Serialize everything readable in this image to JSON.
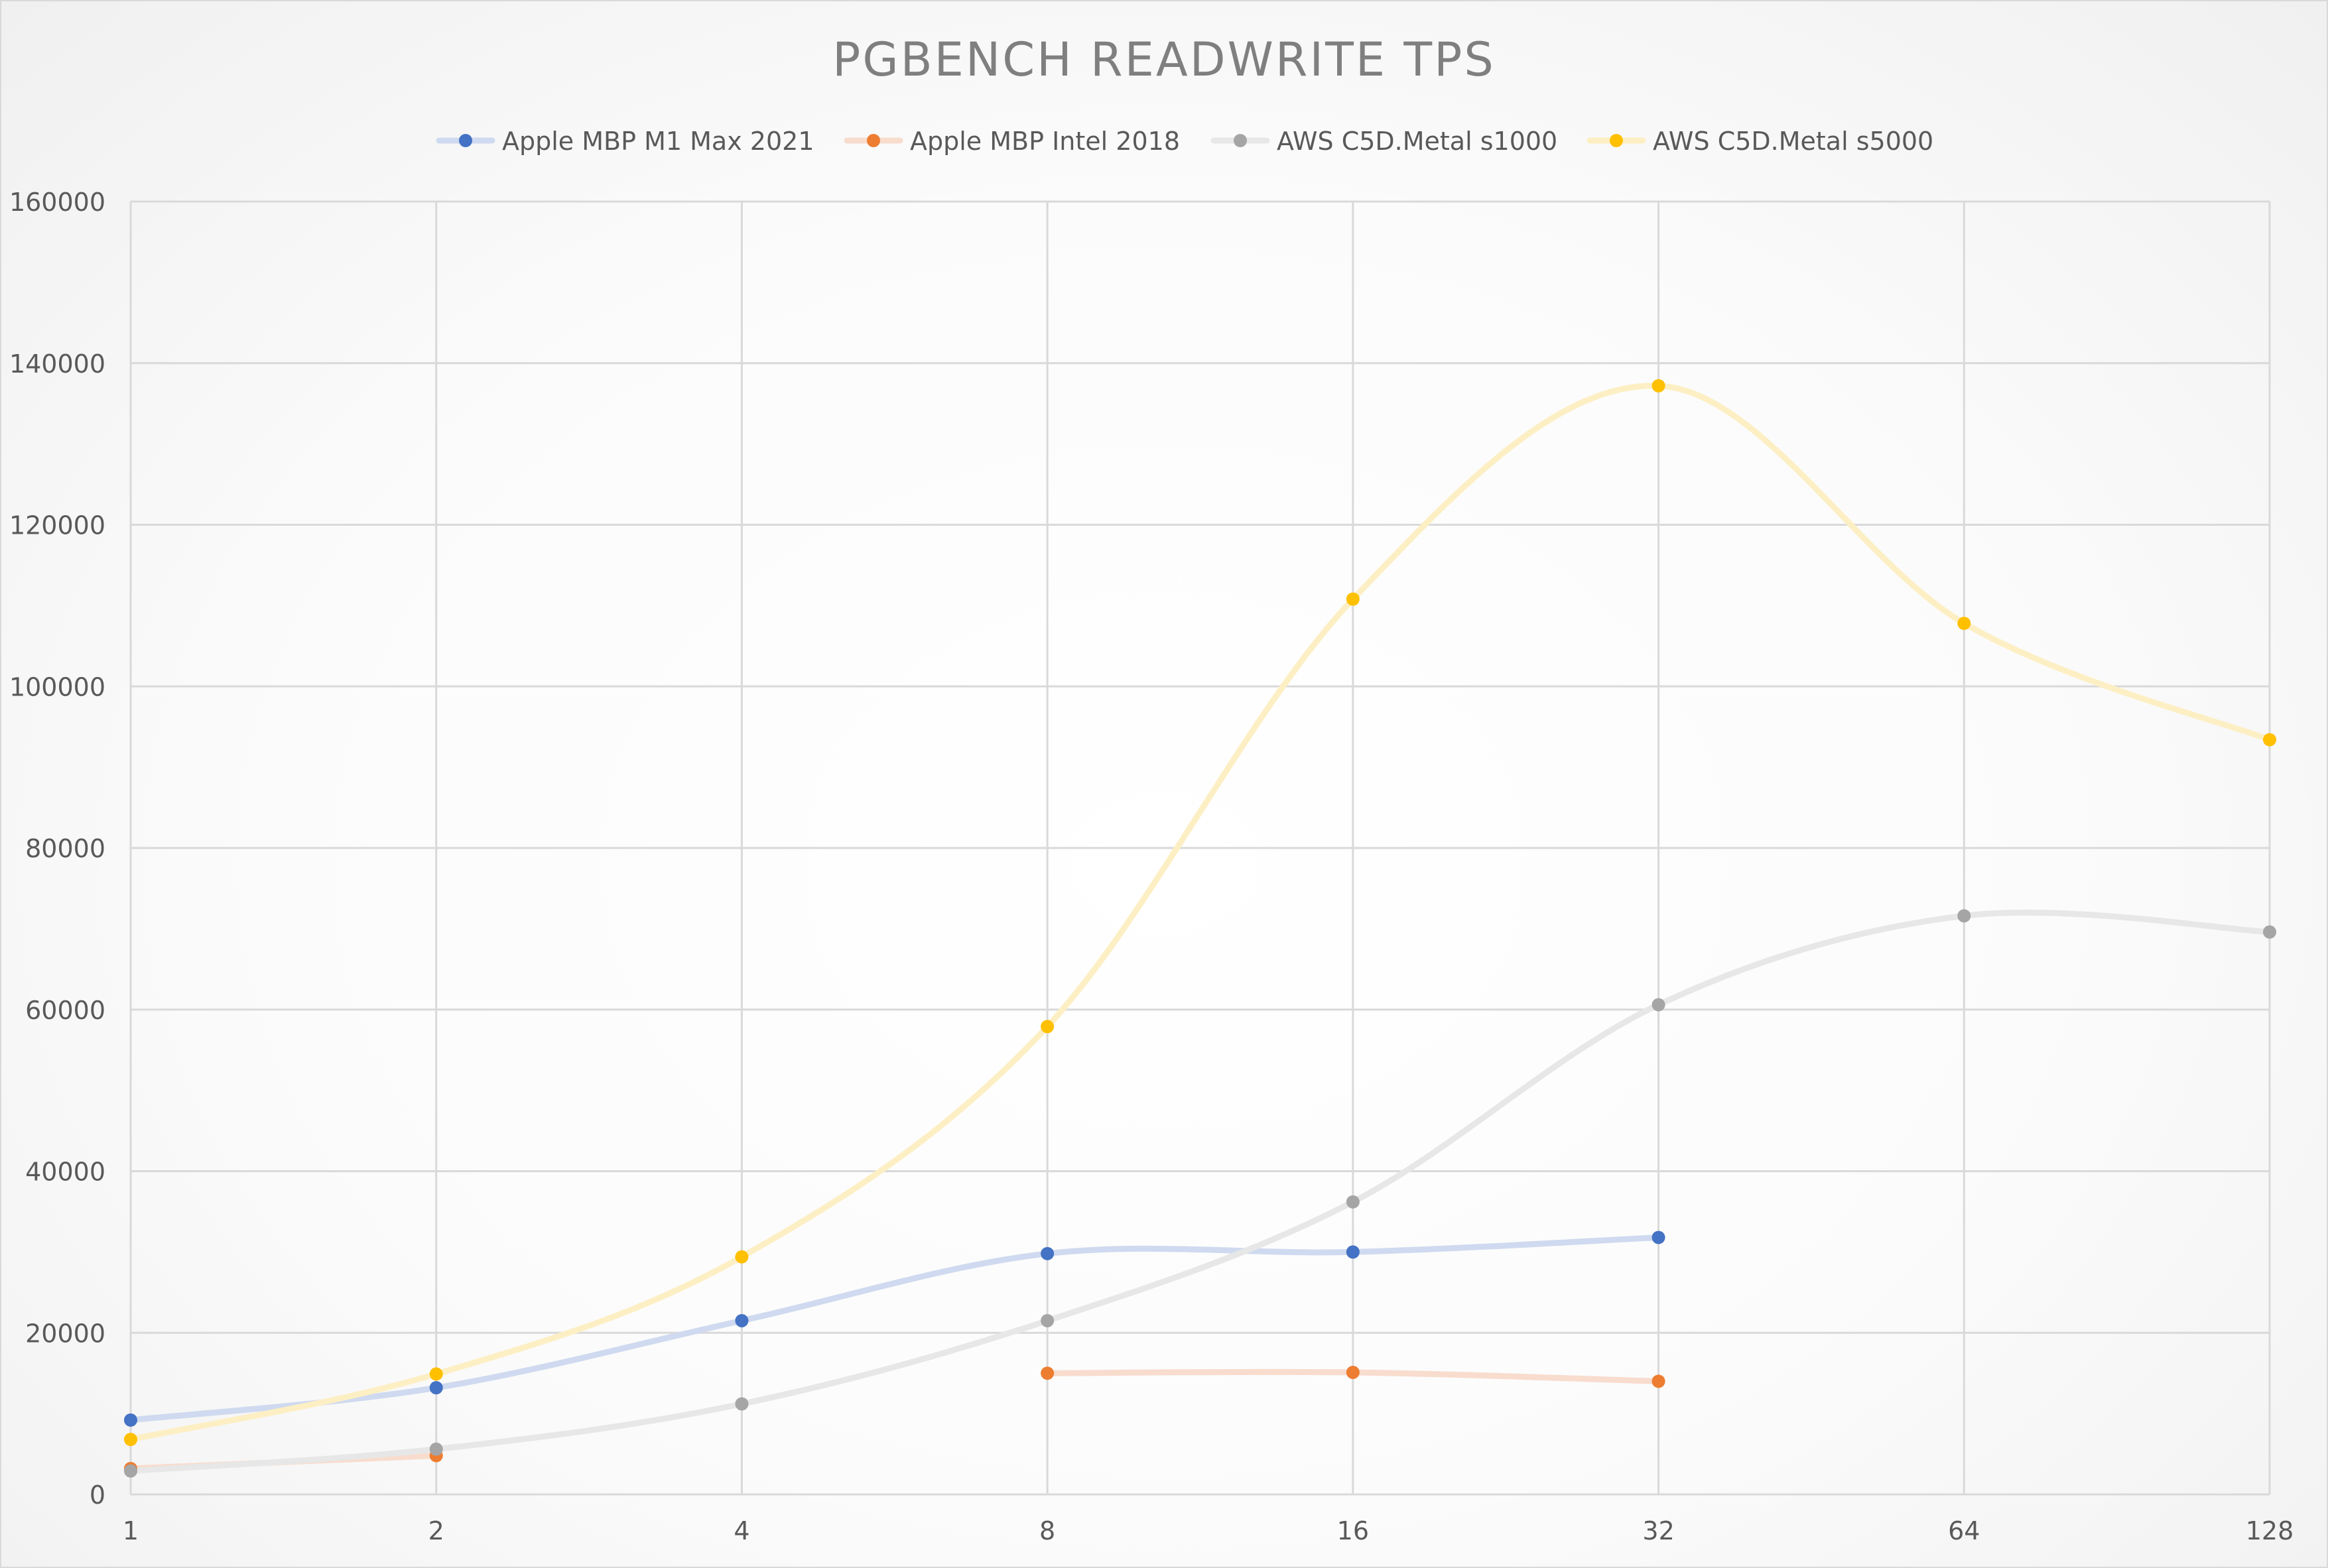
{
  "chart_data": {
    "type": "line",
    "title": "PGBENCH READWRITE TPS",
    "categories": [
      "1",
      "2",
      "4",
      "8",
      "16",
      "32",
      "64",
      "128"
    ],
    "y_ticks": [
      "0",
      "20000",
      "40000",
      "60000",
      "80000",
      "100000",
      "120000",
      "140000",
      "160000"
    ],
    "ylim": [
      0,
      160000
    ],
    "grid": true,
    "legend_position": "top",
    "series": [
      {
        "name": "Apple MBP M1 Max 2021",
        "color": "#4472c4",
        "line_color": "#cfdaf0",
        "values": [
          9200,
          13200,
          21500,
          29800,
          30000,
          31800,
          null,
          null
        ]
      },
      {
        "name": "Apple MBP Intel 2018",
        "color": "#ed7d31",
        "line_color": "#f8dccd",
        "values": [
          3200,
          4800,
          null,
          15000,
          15100,
          14000,
          null,
          null
        ]
      },
      {
        "name": "AWS C5D.Metal s1000",
        "color": "#a5a5a5",
        "line_color": "#e7e7e7",
        "values": [
          2900,
          5600,
          11200,
          21500,
          36200,
          60600,
          71600,
          69600
        ]
      },
      {
        "name": "AWS C5D.Metal s5000",
        "color": "#ffc000",
        "line_color": "#fdefc4",
        "values": [
          6800,
          14900,
          29400,
          57900,
          110800,
          137200,
          107800,
          93400
        ]
      }
    ]
  }
}
